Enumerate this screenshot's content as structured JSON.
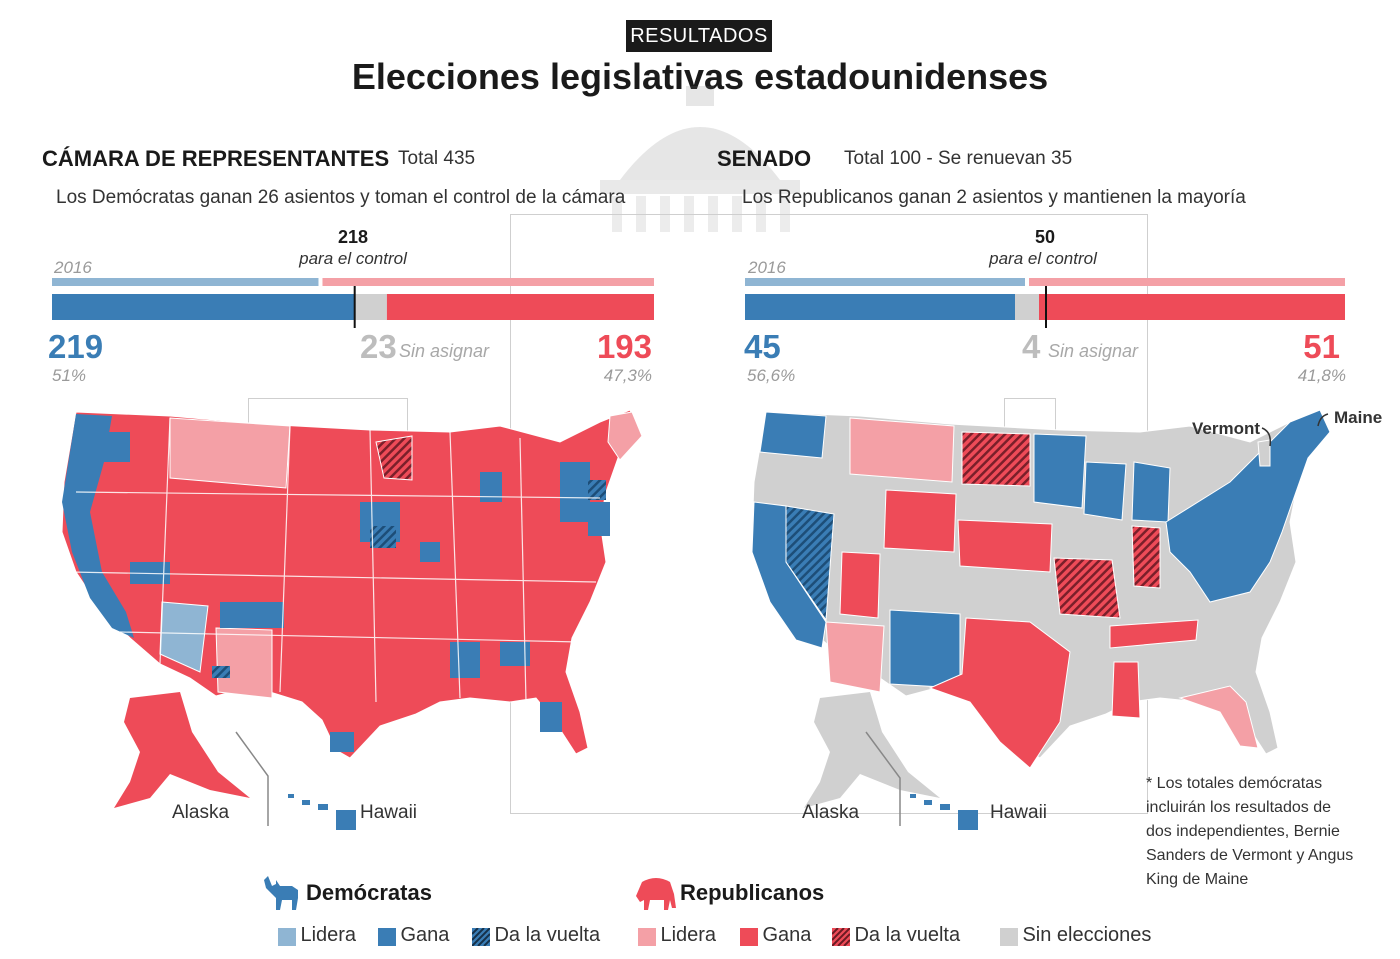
{
  "badge": "RESULTADOS",
  "title": "Elecciones legislativas estadounidenses",
  "colors": {
    "dem_win": "#3a7db5",
    "dem_lead": "#8fb5d3",
    "rep_win": "#ee4b58",
    "rep_lead": "#f4a0a6",
    "no_election": "#d0d0d0",
    "flip_dem": "#1d4e78",
    "flip_rep": "#8a2230"
  },
  "house": {
    "title": "CÁMARA DE REPRESENTANTES",
    "total": "Total 435",
    "subtitle": "Los Demócratas ganan 26 asientos y toman el control de la cámara",
    "label_2016": "2016",
    "control_number": "218",
    "control_text": "para el control",
    "dem_seats": "219",
    "dem_pct": "51%",
    "unassigned": "23",
    "unassigned_text": "Sin asignar",
    "rep_seats": "193",
    "rep_pct": "47,3%",
    "bar": {
      "total": 435,
      "dem": 219,
      "unassigned": 23,
      "rep": 193,
      "control": 218,
      "dem_2016": 194
    }
  },
  "senate": {
    "title": "SENADO",
    "total": "Total 100 - Se renuevan 35",
    "subtitle": "Los Republicanos ganan 2 asientos y mantienen la mayoría",
    "label_2016": "2016",
    "control_number": "50",
    "control_text": "para el control",
    "dem_seats": "45",
    "dem_pct": "56,6%",
    "unassigned": "4",
    "unassigned_text": "Sin asignar",
    "rep_seats": "51",
    "rep_pct": "41,8%",
    "bar": {
      "total": 100,
      "dem": 45,
      "unassigned": 4,
      "rep": 51,
      "control": 50,
      "dem_2016": 47
    }
  },
  "maps": {
    "alaska": "Alaska",
    "hawaii": "Hawaii",
    "vermont": "Vermont",
    "maine": "Maine"
  },
  "note": "* Los totales demócratas incluirán los resultados de dos independientes, Bernie Sanders de Vermont y Angus King de Maine",
  "legend": {
    "dem_title": "Demócratas",
    "rep_title": "Republicanos",
    "lead": "Lidera",
    "win": "Gana",
    "flip": "Da la vuelta",
    "none": "Sin elecciones"
  }
}
